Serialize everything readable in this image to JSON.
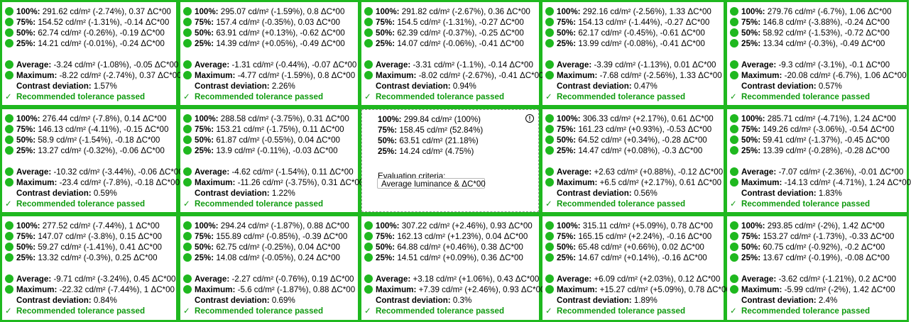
{
  "labels": {
    "p100": "100%:",
    "p75": "75%:",
    "p50": "50%:",
    "p25": "25%:",
    "average": "Average:",
    "maximum": "Maximum:",
    "contrast": "Contrast deviation:",
    "passed": "Recommended tolerance passed",
    "check": "✓"
  },
  "colors": {
    "pass": "#1fb81f"
  },
  "reference": {
    "p100": "299.84 cd/m² (100%)",
    "p75": "158.45 cd/m² (52.84%)",
    "p50": "63.51 cd/m² (21.18%)",
    "p25": "14.24 cd/m² (4.75%)",
    "criteria_label": "Evaluation criteria:",
    "criteria_value": "Average luminance & ΔC*00",
    "info_icon": "!"
  },
  "cells": [
    {
      "p100": "291.62 cd/m² (-2.74%), 0.37 ΔC*00",
      "p75": "154.52 cd/m² (-1.31%), -0.14 ΔC*00",
      "p50": "62.74 cd/m² (-0.26%), -0.19 ΔC*00",
      "p25": "14.21 cd/m² (-0.01%), -0.24 ΔC*00",
      "avg": "-3.24 cd/m² (-1.08%), -0.05 ΔC*00",
      "max": "-8.22 cd/m² (-2.74%), 0.37 ΔC*00",
      "contrast": "1.57%"
    },
    {
      "p100": "295.07 cd/m² (-1.59%), 0.8 ΔC*00",
      "p75": "157.4 cd/m² (-0.35%), 0.03 ΔC*00",
      "p50": "63.91 cd/m² (+0.13%), -0.62 ΔC*00",
      "p25": "14.39 cd/m² (+0.05%), -0.49 ΔC*00",
      "avg": "-1.31 cd/m² (-0.44%), -0.07 ΔC*00",
      "max": "-4.77 cd/m² (-1.59%), 0.8 ΔC*00",
      "contrast": "2.26%"
    },
    {
      "p100": "291.82 cd/m² (-2.67%), 0.36 ΔC*00",
      "p75": "154.5 cd/m² (-1.31%), -0.27 ΔC*00",
      "p50": "62.39 cd/m² (-0.37%), -0.25 ΔC*00",
      "p25": "14.07 cd/m² (-0.06%), -0.41 ΔC*00",
      "avg": "-3.31 cd/m² (-1.1%), -0.14 ΔC*00",
      "max": "-8.02 cd/m² (-2.67%), -0.41 ΔC*00",
      "contrast": "0.94%"
    },
    {
      "p100": "292.16 cd/m² (-2.56%), 1.33 ΔC*00",
      "p75": "154.13 cd/m² (-1.44%), -0.27 ΔC*00",
      "p50": "62.17 cd/m² (-0.45%), -0.61 ΔC*00",
      "p25": "13.99 cd/m² (-0.08%), -0.41 ΔC*00",
      "avg": "-3.39 cd/m² (-1.13%), 0.01 ΔC*00",
      "max": "-7.68 cd/m² (-2.56%), 1.33 ΔC*00",
      "contrast": "0.47%"
    },
    {
      "p100": "279.76 cd/m² (-6.7%), 1.06 ΔC*00",
      "p75": "146.8 cd/m² (-3.88%), -0.24 ΔC*00",
      "p50": "58.92 cd/m² (-1.53%), -0.72 ΔC*00",
      "p25": "13.34 cd/m² (-0.3%), -0.49 ΔC*00",
      "avg": "-9.3 cd/m² (-3.1%), -0.1 ΔC*00",
      "max": "-20.08 cd/m² (-6.7%), 1.06 ΔC*00",
      "contrast": "0.57%"
    },
    {
      "p100": "276.44 cd/m² (-7.8%), 0.14 ΔC*00",
      "p75": "146.13 cd/m² (-4.11%), -0.15 ΔC*00",
      "p50": "58.9 cd/m² (-1.54%), -0.18 ΔC*00",
      "p25": "13.27 cd/m² (-0.32%), -0.06 ΔC*00",
      "avg": "-10.32 cd/m² (-3.44%), -0.06 ΔC*00",
      "max": "-23.4 cd/m² (-7.8%), -0.18 ΔC*00",
      "contrast": "0.59%"
    },
    {
      "p100": "288.58 cd/m² (-3.75%), 0.31 ΔC*00",
      "p75": "153.21 cd/m² (-1.75%), 0.11 ΔC*00",
      "p50": "61.87 cd/m² (-0.55%), 0.04 ΔC*00",
      "p25": "13.9 cd/m² (-0.11%), -0.03 ΔC*00",
      "avg": "-4.62 cd/m² (-1.54%), 0.11 ΔC*00",
      "max": "-11.26 cd/m² (-3.75%), 0.31 ΔC*00",
      "contrast": "1.22%"
    },
    null,
    {
      "p100": "306.33 cd/m² (+2.17%), 0.61 ΔC*00",
      "p75": "161.23 cd/m² (+0.93%), -0.53 ΔC*00",
      "p50": "64.52 cd/m² (+0.34%), -0.28 ΔC*00",
      "p25": "14.47 cd/m² (+0.08%), -0.3 ΔC*00",
      "avg": "+2.63 cd/m² (+0.88%), -0.12 ΔC*00",
      "max": "+6.5 cd/m² (+2.17%), 0.61 ΔC*00",
      "contrast": "0.56%"
    },
    {
      "p100": "285.71 cd/m² (-4.71%), 1.24 ΔC*00",
      "p75": "149.26 cd/m² (-3.06%), -0.54 ΔC*00",
      "p50": "59.41 cd/m² (-1.37%), -0.45 ΔC*00",
      "p25": "13.39 cd/m² (-0.28%), -0.28 ΔC*00",
      "avg": "-7.07 cd/m² (-2.36%), -0.01 ΔC*00",
      "max": "-14.13 cd/m² (-4.71%), 1.24 ΔC*00",
      "contrast": "1.83%"
    },
    {
      "p100": "277.52 cd/m² (-7.44%), 1 ΔC*00",
      "p75": "147.07 cd/m² (-3.8%), 0.15 ΔC*00",
      "p50": "59.27 cd/m² (-1.41%), 0.41 ΔC*00",
      "p25": "13.32 cd/m² (-0.3%), 0.25 ΔC*00",
      "avg": "-9.71 cd/m² (-3.24%), 0.45 ΔC*00",
      "max": "-22.32 cd/m² (-7.44%), 1 ΔC*00",
      "contrast": "0.84%"
    },
    {
      "p100": "294.24 cd/m² (-1.87%), 0.88 ΔC*00",
      "p75": "155.89 cd/m² (-0.85%), -0.39 ΔC*00",
      "p50": "62.75 cd/m² (-0.25%), 0.04 ΔC*00",
      "p25": "14.08 cd/m² (-0.05%), 0.24 ΔC*00",
      "avg": "-2.27 cd/m² (-0.76%), 0.19 ΔC*00",
      "max": "-5.6 cd/m² (-1.87%), 0.88 ΔC*00",
      "contrast": "0.69%"
    },
    {
      "p100": "307.22 cd/m² (+2.46%), 0.93 ΔC*00",
      "p75": "162.13 cd/m² (+1.23%), 0.04 ΔC*00",
      "p50": "64.88 cd/m² (+0.46%), 0.38 ΔC*00",
      "p25": "14.51 cd/m² (+0.09%), 0.36 ΔC*00",
      "avg": "+3.18 cd/m² (+1.06%), 0.43 ΔC*00",
      "max": "+7.39 cd/m² (+2.46%), 0.93 ΔC*00",
      "contrast": "0.3%"
    },
    {
      "p100": "315.11 cd/m² (+5.09%), 0.78 ΔC*00",
      "p75": "165.15 cd/m² (+2.24%), -0.16 ΔC*00",
      "p50": "65.48 cd/m² (+0.66%), 0.02 ΔC*00",
      "p25": "14.67 cd/m² (+0.14%), -0.16 ΔC*00",
      "avg": "+6.09 cd/m² (+2.03%), 0.12 ΔC*00",
      "max": "+15.27 cd/m² (+5.09%), 0.78 ΔC*00",
      "contrast": "1.89%"
    },
    {
      "p100": "293.85 cd/m² (-2%), 1.42 ΔC*00",
      "p75": "153.27 cd/m² (-1.73%), -0.33 ΔC*00",
      "p50": "60.75 cd/m² (-0.92%), -0.2 ΔC*00",
      "p25": "13.67 cd/m² (-0.19%), -0.08 ΔC*00",
      "avg": "-3.62 cd/m² (-1.21%), 0.2 ΔC*00",
      "max": "-5.99 cd/m² (-2%), 1.42 ΔC*00",
      "contrast": "2.4%"
    }
  ]
}
